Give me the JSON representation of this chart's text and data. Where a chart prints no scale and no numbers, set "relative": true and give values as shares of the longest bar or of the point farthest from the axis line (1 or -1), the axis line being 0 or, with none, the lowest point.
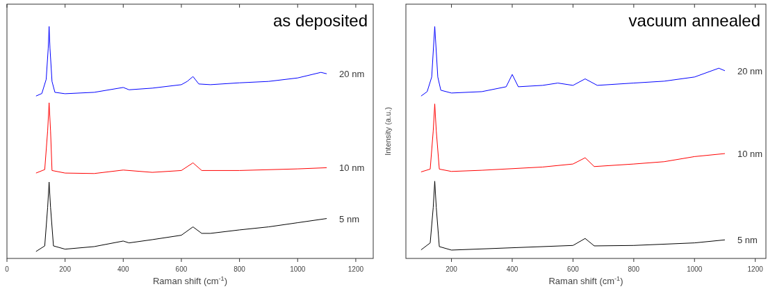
{
  "chart_data": [
    {
      "type": "line",
      "title": "as deposited",
      "xlabel": "Raman shift (cm$^{-1}$)",
      "relative": true,
      "xlim": [
        0,
        1260
      ],
      "xticks": [
        0,
        200,
        400,
        600,
        800,
        1000,
        1200
      ],
      "legend": false,
      "grid": false,
      "marker": "none",
      "line_style": "solid",
      "series": [
        {
          "name": "20 nm",
          "color": "#0000ff",
          "x": [
            100,
            120,
            135,
            142,
            145,
            148,
            155,
            165,
            200,
            300,
            400,
            420,
            500,
            600,
            620,
            640,
            660,
            700,
            800,
            900,
            1000,
            1080,
            1100
          ],
          "values": [
            0.7,
            0.711,
            0.772,
            0.907,
            1.0,
            0.907,
            0.763,
            0.716,
            0.71,
            0.716,
            0.737,
            0.727,
            0.734,
            0.749,
            0.763,
            0.784,
            0.752,
            0.749,
            0.757,
            0.763,
            0.778,
            0.802,
            0.796
          ]
        },
        {
          "name": "10 nm",
          "color": "#ff0000",
          "x": [
            100,
            130,
            140,
            145,
            150,
            155,
            200,
            300,
            400,
            500,
            600,
            640,
            670,
            800,
            1000,
            1100
          ],
          "values": [
            0.368,
            0.383,
            0.55,
            0.671,
            0.55,
            0.379,
            0.368,
            0.366,
            0.381,
            0.371,
            0.379,
            0.412,
            0.379,
            0.379,
            0.386,
            0.391
          ]
        },
        {
          "name": "5 nm",
          "color": "#000000",
          "x": [
            100,
            130,
            140,
            145,
            150,
            160,
            200,
            300,
            400,
            420,
            500,
            600,
            640,
            670,
            700,
            800,
            900,
            1000,
            1100
          ],
          "values": [
            0.03,
            0.054,
            0.22,
            0.329,
            0.22,
            0.054,
            0.04,
            0.051,
            0.075,
            0.067,
            0.081,
            0.1,
            0.136,
            0.108,
            0.108,
            0.123,
            0.136,
            0.154,
            0.172
          ]
        }
      ]
    },
    {
      "type": "line",
      "title": "vacuum annealed",
      "xlabel": "Raman shift (cm$^{-1}$)",
      "ylabel": "Intensity (a.u.)",
      "relative": true,
      "xlim": [
        50,
        1235
      ],
      "xticks": [
        200,
        400,
        600,
        800,
        1000,
        1200
      ],
      "legend": false,
      "grid": false,
      "marker": "none",
      "line_style": "solid",
      "series": [
        {
          "name": "20 nm",
          "color": "#0000ff",
          "x": [
            100,
            120,
            135,
            145,
            155,
            165,
            200,
            300,
            380,
            400,
            420,
            500,
            550,
            600,
            640,
            680,
            800,
            900,
            1000,
            1080,
            1100
          ],
          "values": [
            0.7,
            0.719,
            0.782,
            1.0,
            0.782,
            0.725,
            0.713,
            0.719,
            0.74,
            0.793,
            0.74,
            0.746,
            0.756,
            0.746,
            0.774,
            0.746,
            0.756,
            0.764,
            0.782,
            0.82,
            0.809
          ]
        },
        {
          "name": "10 nm",
          "color": "#ff0000",
          "x": [
            100,
            130,
            140,
            145,
            150,
            160,
            200,
            300,
            500,
            600,
            640,
            670,
            800,
            900,
            1000,
            1100
          ],
          "values": [
            0.373,
            0.385,
            0.55,
            0.666,
            0.55,
            0.385,
            0.375,
            0.38,
            0.394,
            0.407,
            0.434,
            0.396,
            0.407,
            0.417,
            0.439,
            0.452
          ]
        },
        {
          "name": "5 nm",
          "color": "#000000",
          "x": [
            100,
            130,
            140,
            145,
            150,
            160,
            200,
            400,
            600,
            640,
            670,
            800,
            1000,
            1100
          ],
          "values": [
            0.037,
            0.067,
            0.22,
            0.333,
            0.22,
            0.051,
            0.036,
            0.046,
            0.056,
            0.086,
            0.054,
            0.056,
            0.067,
            0.08
          ]
        }
      ]
    }
  ]
}
